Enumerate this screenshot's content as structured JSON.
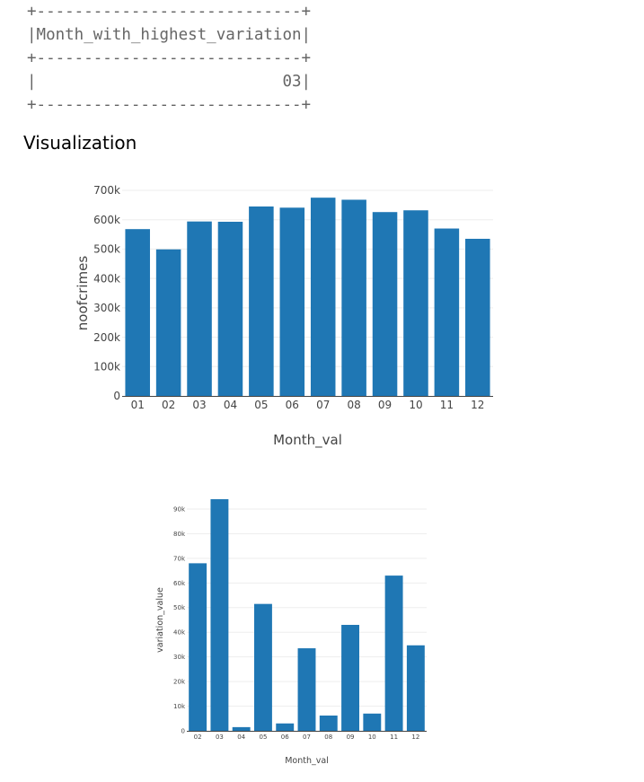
{
  "output_table": {
    "line1": "+----------------------------+",
    "header": "|Month_with_highest_variation|",
    "line2": "+----------------------------+",
    "value": "|                          03|",
    "line3": "+----------------------------+"
  },
  "section_heading": "Visualization",
  "colors": {
    "bar": "#1f77b4",
    "grid": "#eeeeee",
    "axis": "#444444"
  },
  "chart_data": [
    {
      "type": "bar",
      "title": "",
      "xlabel": "Month_val",
      "ylabel": "noofcrimes",
      "categories": [
        "01",
        "02",
        "03",
        "04",
        "05",
        "06",
        "07",
        "08",
        "09",
        "10",
        "11",
        "12"
      ],
      "values": [
        568000,
        499000,
        594000,
        593000,
        645000,
        641000,
        675000,
        668000,
        626000,
        632000,
        570000,
        535000
      ],
      "ylim": [
        0,
        700000
      ],
      "yticks": [
        0,
        100000,
        200000,
        300000,
        400000,
        500000,
        600000,
        700000
      ],
      "ytick_labels": [
        "0",
        "100k",
        "200k",
        "300k",
        "400k",
        "500k",
        "600k",
        "700k"
      ],
      "grid": true
    },
    {
      "type": "bar",
      "title": "",
      "xlabel": "Month_val",
      "ylabel": "variation_value",
      "categories": [
        "02",
        "03",
        "04",
        "05",
        "06",
        "07",
        "08",
        "09",
        "10",
        "11",
        "12"
      ],
      "values": [
        68000,
        94000,
        1500,
        51500,
        3000,
        33500,
        6200,
        43000,
        7000,
        63000,
        34700
      ],
      "ylim": [
        0,
        90000
      ],
      "yticks": [
        0,
        10000,
        20000,
        30000,
        40000,
        50000,
        60000,
        70000,
        80000,
        90000
      ],
      "ytick_labels": [
        "0",
        "10k",
        "20k",
        "30k",
        "40k",
        "50k",
        "60k",
        "70k",
        "80k",
        "90k"
      ],
      "grid": true
    }
  ]
}
